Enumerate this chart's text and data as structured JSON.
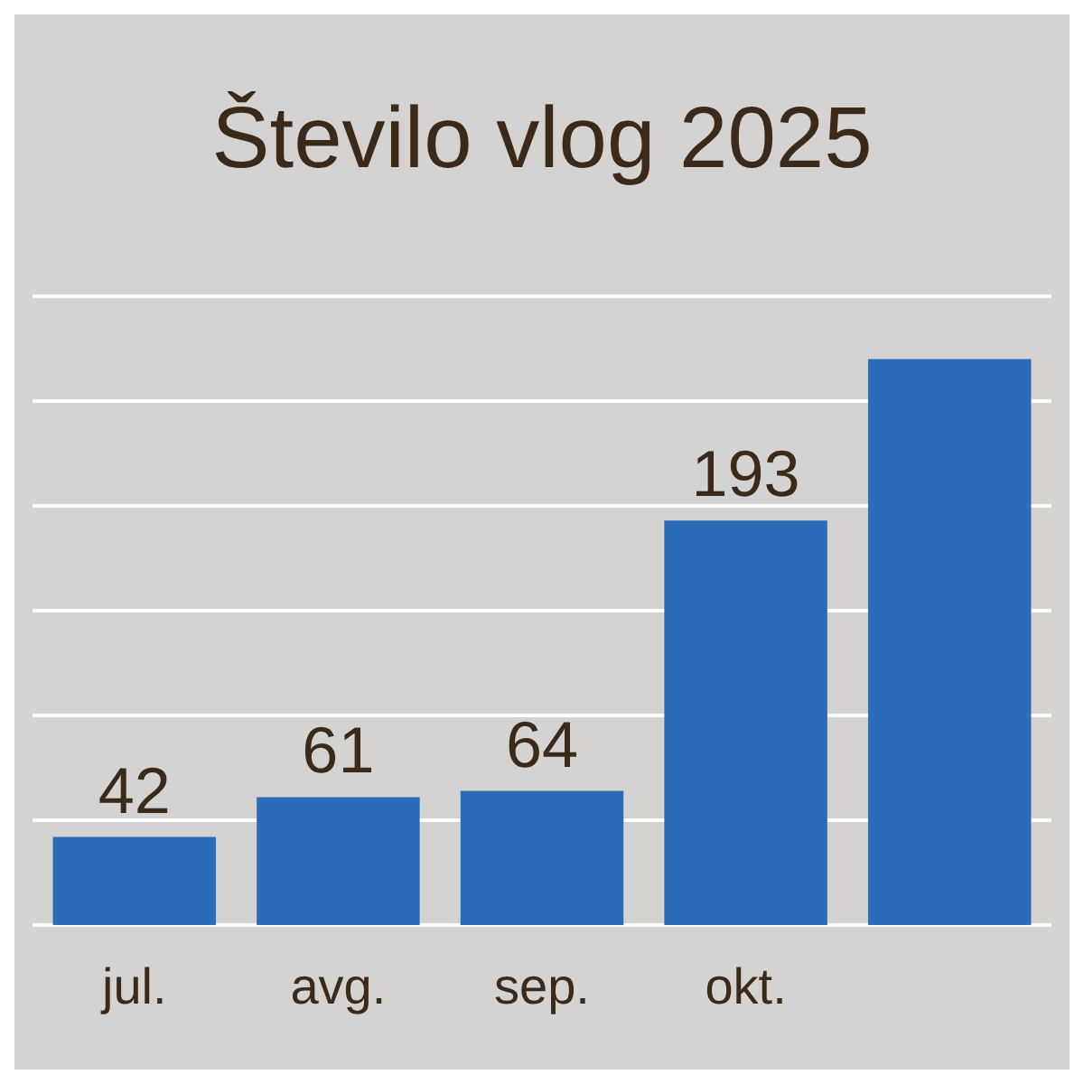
{
  "chart_data": {
    "type": "bar",
    "title": "Število vlog 2025",
    "categories": [
      "jul.",
      "avg.",
      "sep.",
      "okt.",
      null
    ],
    "values": [
      42,
      61,
      64,
      193,
      270
    ],
    "value_labels": [
      "42",
      "61",
      "64",
      "193",
      null
    ],
    "color": "#2b6cb8",
    "ylim": [
      0,
      300
    ],
    "yticks": [
      {
        "value": 0,
        "label": null
      },
      {
        "value": 50,
        "label": null
      },
      {
        "value": 100,
        "label": null
      },
      {
        "value": 150,
        "label": null
      },
      {
        "value": 200,
        "label": null
      },
      {
        "value": 250,
        "label": null
      },
      {
        "value": 300,
        "label": null
      }
    ],
    "grid": "y",
    "tick_labels": "x"
  }
}
